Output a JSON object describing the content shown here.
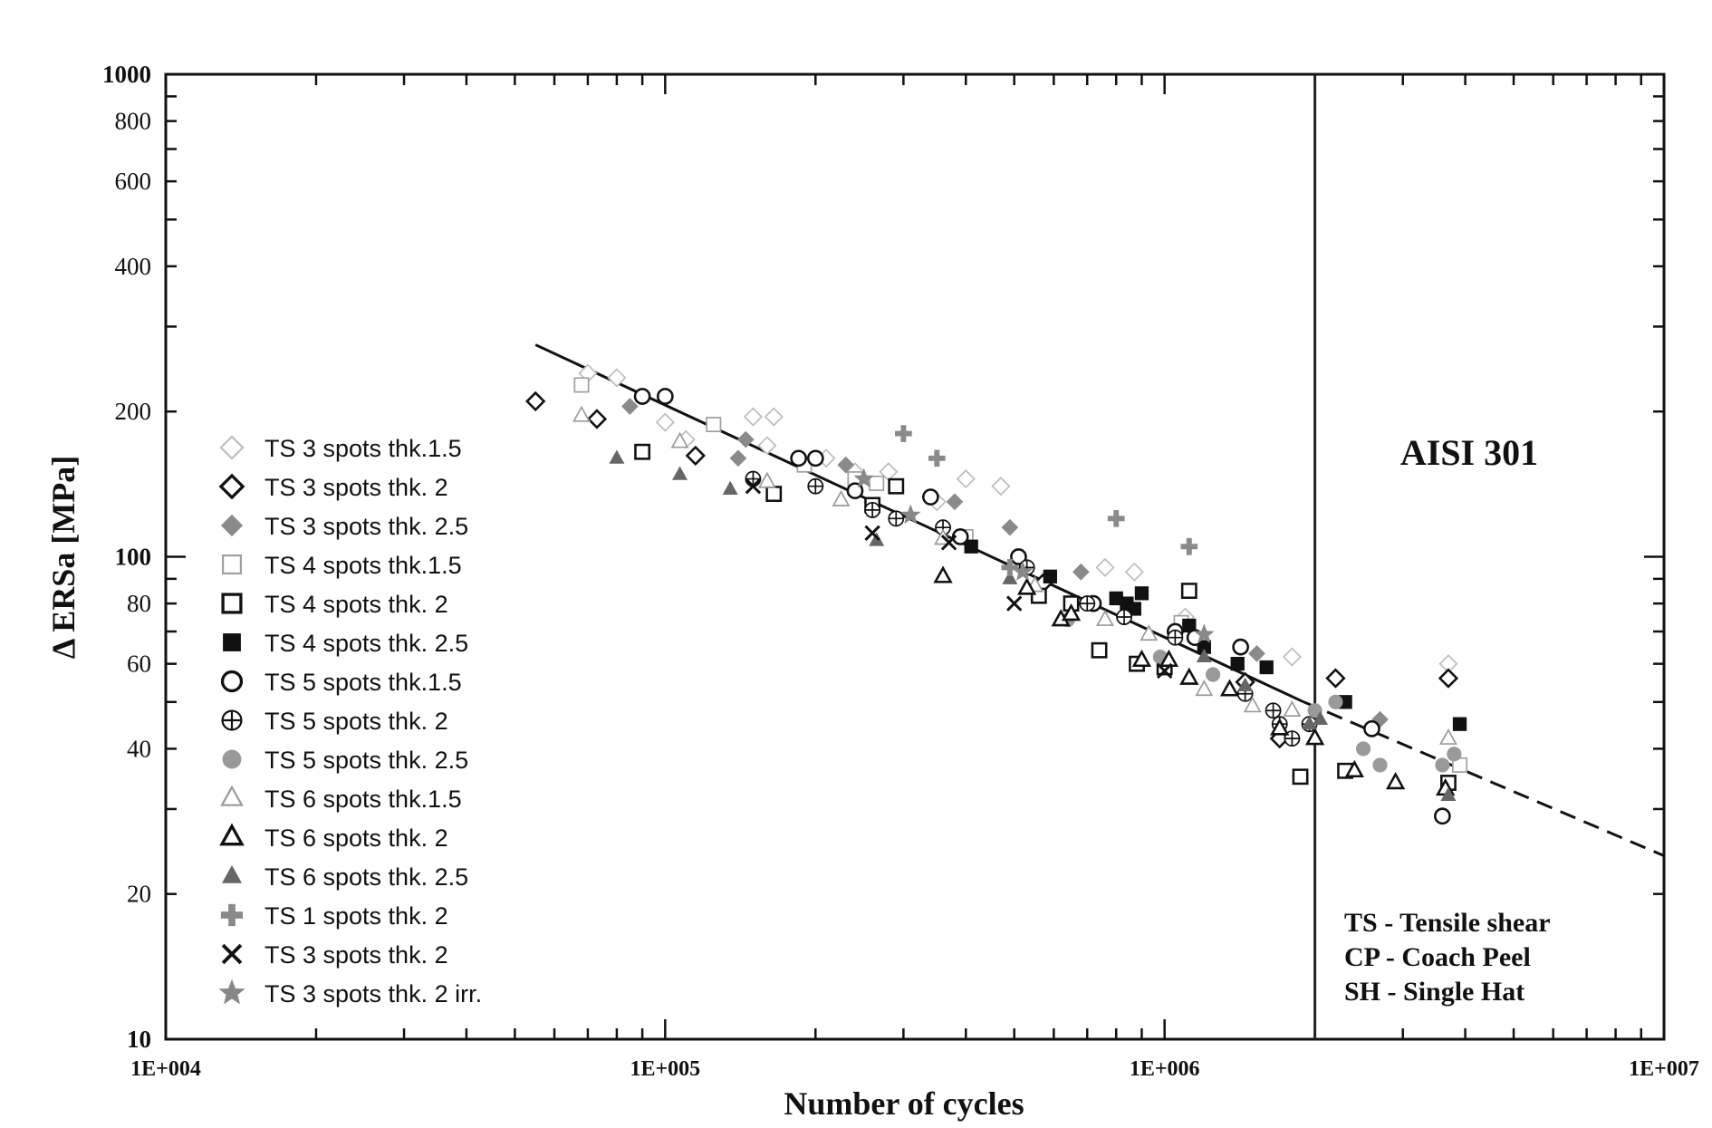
{
  "chart_data": {
    "type": "scatter",
    "xlabel": "Number of cycles",
    "ylabel": "Δ ERSa  [MPa]",
    "x_scale": "log",
    "y_scale": "log",
    "xlim": [
      10000,
      10000000
    ],
    "ylim": [
      10,
      1000
    ],
    "x_ticks": [
      10000,
      100000,
      1000000,
      10000000
    ],
    "x_tick_labels": [
      "1E+004",
      "1E+005",
      "1E+006",
      "1E+007"
    ],
    "y_ticks": [
      10,
      20,
      40,
      60,
      80,
      100,
      200,
      400,
      600,
      800,
      1000
    ],
    "y_tick_labels": [
      "10",
      "20",
      "40",
      "60",
      "80",
      "100",
      "200",
      "400",
      "600",
      "800",
      "1000"
    ],
    "bold_y_ticks": [
      "10",
      "100",
      "1000"
    ],
    "annotations": {
      "material": "AISI 301",
      "notes": [
        "TS  - Tensile shear",
        "CP - Coach Peel",
        "SH - Single Hat"
      ]
    },
    "reference_line": {
      "x": 2000000
    },
    "fit_line": {
      "x_start": 55000,
      "y_start": 275,
      "x_end": 1900000,
      "y_end": 50
    },
    "extrapolation_line": {
      "x_start": 1900000,
      "y_start": 50,
      "x_end": 10000000,
      "y_end": 24
    },
    "series": [
      {
        "name": "TS 3 spots thk.1.5",
        "marker": "diamond-open",
        "color": "#bdbdbd",
        "points": [
          [
            70000,
            240
          ],
          [
            80000,
            235
          ],
          [
            100000,
            190
          ],
          [
            110000,
            175
          ],
          [
            150000,
            195
          ],
          [
            165000,
            195
          ],
          [
            160000,
            170
          ],
          [
            210000,
            160
          ],
          [
            240000,
            150
          ],
          [
            280000,
            150
          ],
          [
            350000,
            130
          ],
          [
            400000,
            145
          ],
          [
            470000,
            140
          ],
          [
            760000,
            95
          ],
          [
            870000,
            93
          ],
          [
            1100000,
            75
          ],
          [
            1800000,
            62
          ],
          [
            3700000,
            60
          ]
        ]
      },
      {
        "name": "TS 3 spots thk. 2",
        "marker": "diamond-open",
        "color": "#111111",
        "points": [
          [
            55000,
            210
          ],
          [
            73000,
            193
          ],
          [
            115000,
            162
          ],
          [
            570000,
            88
          ],
          [
            1450000,
            55
          ],
          [
            1700000,
            42
          ],
          [
            2200000,
            56
          ],
          [
            3700000,
            56
          ]
        ]
      },
      {
        "name": "TS 3 spots thk. 2.5",
        "marker": "diamond",
        "color": "#8a8a8a",
        "points": [
          [
            85000,
            205
          ],
          [
            145000,
            175
          ],
          [
            140000,
            160
          ],
          [
            230000,
            155
          ],
          [
            380000,
            130
          ],
          [
            490000,
            115
          ],
          [
            680000,
            93
          ],
          [
            1530000,
            63
          ],
          [
            2700000,
            46
          ]
        ]
      },
      {
        "name": "TS 4 spots thk.1.5",
        "marker": "square-open",
        "color": "#a0a0a0",
        "points": [
          [
            68000,
            227
          ],
          [
            125000,
            188
          ],
          [
            190000,
            155
          ],
          [
            240000,
            145
          ],
          [
            265000,
            142
          ],
          [
            400000,
            110
          ],
          [
            1080000,
            73
          ],
          [
            3900000,
            37
          ]
        ]
      },
      {
        "name": "TS 4 spots thk. 2",
        "marker": "square-open",
        "color": "#111111",
        "points": [
          [
            90000,
            165
          ],
          [
            165000,
            135
          ],
          [
            260000,
            128
          ],
          [
            290000,
            140
          ],
          [
            560000,
            83
          ],
          [
            650000,
            80
          ],
          [
            740000,
            64
          ],
          [
            880000,
            60
          ],
          [
            1000000,
            59
          ],
          [
            1120000,
            85
          ],
          [
            1870000,
            35
          ],
          [
            2300000,
            36
          ],
          [
            3700000,
            34
          ]
        ]
      },
      {
        "name": "TS 4 spots thk. 2.5",
        "marker": "square",
        "color": "#111111",
        "points": [
          [
            410000,
            105
          ],
          [
            590000,
            91
          ],
          [
            800000,
            82
          ],
          [
            840000,
            80
          ],
          [
            870000,
            78
          ],
          [
            900000,
            84
          ],
          [
            1120000,
            72
          ],
          [
            1200000,
            65
          ],
          [
            1400000,
            60
          ],
          [
            1600000,
            59
          ],
          [
            2300000,
            50
          ],
          [
            3900000,
            45
          ]
        ]
      },
      {
        "name": "TS 5 spots thk.1.5",
        "marker": "circle-open",
        "color": "#111111",
        "points": [
          [
            90000,
            215
          ],
          [
            100000,
            215
          ],
          [
            185000,
            160
          ],
          [
            200000,
            160
          ],
          [
            240000,
            137
          ],
          [
            340000,
            133
          ],
          [
            390000,
            110
          ],
          [
            510000,
            100
          ],
          [
            720000,
            80
          ],
          [
            1050000,
            70
          ],
          [
            1150000,
            68
          ],
          [
            1420000,
            65
          ],
          [
            2600000,
            44
          ],
          [
            3600000,
            29
          ]
        ]
      },
      {
        "name": "TS 5 spots thk. 2",
        "marker": "circle-cross",
        "color": "#111111",
        "points": [
          [
            150000,
            145
          ],
          [
            200000,
            140
          ],
          [
            260000,
            125
          ],
          [
            290000,
            120
          ],
          [
            360000,
            115
          ],
          [
            530000,
            95
          ],
          [
            700000,
            80
          ],
          [
            830000,
            75
          ],
          [
            1050000,
            68
          ],
          [
            1450000,
            52
          ],
          [
            1650000,
            48
          ],
          [
            1700000,
            45
          ],
          [
            1800000,
            42
          ],
          [
            1950000,
            45
          ]
        ]
      },
      {
        "name": "TS 5 spots thk. 2.5",
        "marker": "circle",
        "color": "#999999",
        "points": [
          [
            640000,
            74
          ],
          [
            980000,
            62
          ],
          [
            1250000,
            57
          ],
          [
            2000000,
            48
          ],
          [
            2200000,
            50
          ],
          [
            2500000,
            40
          ],
          [
            2700000,
            37
          ],
          [
            3800000,
            39
          ],
          [
            3600000,
            37
          ]
        ]
      },
      {
        "name": "TS 6 spots thk.1.5",
        "marker": "triangle-open",
        "color": "#9a9a9a",
        "points": [
          [
            68000,
            196
          ],
          [
            107000,
            173
          ],
          [
            160000,
            143
          ],
          [
            225000,
            131
          ],
          [
            360000,
            109
          ],
          [
            550000,
            87
          ],
          [
            760000,
            74
          ],
          [
            930000,
            69
          ],
          [
            1200000,
            53
          ],
          [
            1500000,
            49
          ],
          [
            1800000,
            48
          ],
          [
            3700000,
            42
          ]
        ]
      },
      {
        "name": "TS 6 spots thk. 2",
        "marker": "triangle-open",
        "color": "#111111",
        "points": [
          [
            360000,
            91
          ],
          [
            530000,
            86
          ],
          [
            620000,
            74
          ],
          [
            650000,
            76
          ],
          [
            900000,
            61
          ],
          [
            1020000,
            61
          ],
          [
            1120000,
            56
          ],
          [
            1350000,
            53
          ],
          [
            1700000,
            44
          ],
          [
            2000000,
            42
          ],
          [
            2400000,
            36
          ],
          [
            2900000,
            34
          ],
          [
            3650000,
            33
          ]
        ]
      },
      {
        "name": "TS 6 spots thk. 2.5",
        "marker": "triangle",
        "color": "#666666",
        "points": [
          [
            80000,
            160
          ],
          [
            107000,
            148
          ],
          [
            135000,
            138
          ],
          [
            265000,
            108
          ],
          [
            490000,
            90
          ],
          [
            1200000,
            62
          ],
          [
            1450000,
            54
          ],
          [
            1950000,
            45
          ],
          [
            2050000,
            46
          ],
          [
            3700000,
            32
          ]
        ]
      },
      {
        "name": "TS 1 spots thk. 2",
        "marker": "plus",
        "color": "#8a8a8a",
        "points": [
          [
            300000,
            180
          ],
          [
            350000,
            160
          ],
          [
            490000,
            95
          ],
          [
            800000,
            120
          ],
          [
            1120000,
            105
          ]
        ]
      },
      {
        "name": "TS 3 spots thk. 2",
        "marker": "cross",
        "color": "#111111",
        "points": [
          [
            150000,
            140
          ],
          [
            260000,
            112
          ],
          [
            370000,
            107
          ],
          [
            500000,
            80
          ],
          [
            1000000,
            58
          ]
        ]
      },
      {
        "name": "TS 3 spots thk. 2 irr.",
        "marker": "star",
        "color": "#888888",
        "points": [
          [
            250000,
            145
          ],
          [
            310000,
            122
          ],
          [
            520000,
            93
          ],
          [
            1200000,
            69
          ]
        ]
      }
    ]
  }
}
